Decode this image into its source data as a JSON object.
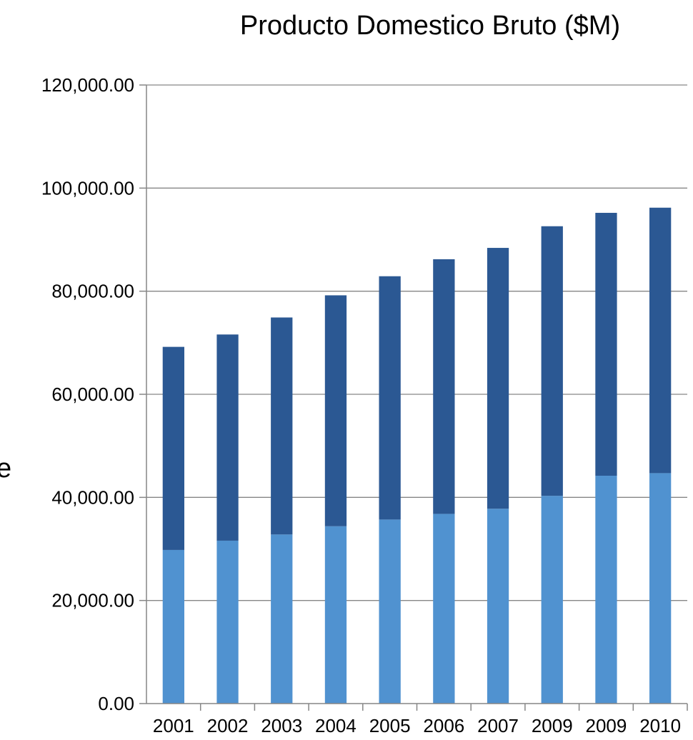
{
  "chart_data": {
    "type": "bar",
    "stacked": true,
    "title": "Producto Domestico Bruto  ($M)",
    "xlabel": "",
    "ylabel": "",
    "categories": [
      "2001",
      "2002",
      "2003",
      "2004",
      "2005",
      "2006",
      "2007",
      "2009",
      "2009",
      "2010"
    ],
    "series": [
      {
        "color": "#5092d0",
        "values": [
          29800,
          31600,
          32800,
          34400,
          35700,
          36800,
          37800,
          40300,
          44200,
          44700
        ]
      },
      {
        "color": "#2b5893",
        "values": [
          39400,
          40000,
          42100,
          44800,
          47200,
          49400,
          50600,
          52300,
          51000,
          51500
        ]
      }
    ],
    "ylim": [
      0,
      120000
    ],
    "yticks": [
      "0.00",
      "20,000.00",
      "40,000.00",
      "60,000.00",
      "80,000.00",
      "100,000.00",
      "120,000.00"
    ],
    "grid": true,
    "legend": "none"
  }
}
